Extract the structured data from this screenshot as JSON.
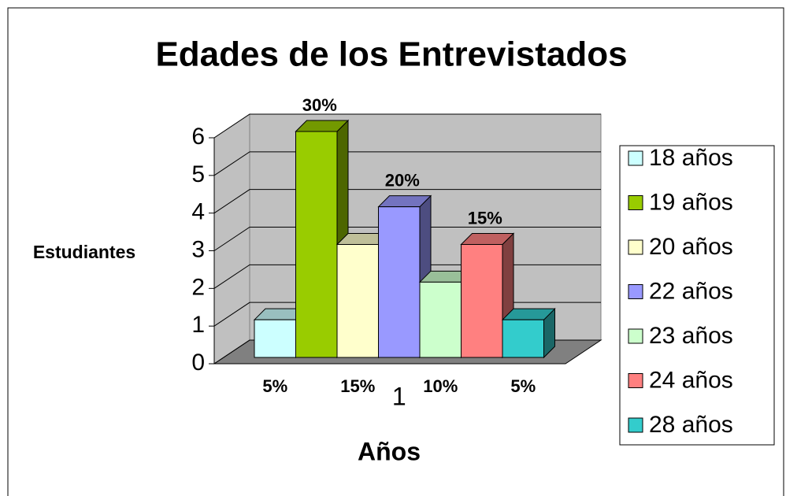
{
  "chart_data": {
    "type": "bar3d",
    "title": "Edades de los Entrevistados",
    "xlabel": "Años",
    "ylabel": "Estudiantes",
    "categories": [
      "1"
    ],
    "series": [
      {
        "name": "18 años",
        "color": "#ccffff",
        "values": [
          1
        ],
        "value_labels": [
          "5%"
        ]
      },
      {
        "name": "19 años",
        "color": "#99cc00",
        "values": [
          6
        ],
        "value_labels": [
          "30%"
        ]
      },
      {
        "name": "20 años",
        "color": "#ffffcc",
        "values": [
          3
        ],
        "value_labels": [
          "15%"
        ]
      },
      {
        "name": "22 años",
        "color": "#9999ff",
        "values": [
          4
        ],
        "value_labels": [
          "20%"
        ]
      },
      {
        "name": "23 años",
        "color": "#ccffcc",
        "values": [
          2
        ],
        "value_labels": [
          "10%"
        ]
      },
      {
        "name": "24 años",
        "color": "#ff8080",
        "values": [
          3
        ],
        "value_labels": [
          "15%"
        ]
      },
      {
        "name": "28 años",
        "color": "#33cccc",
        "values": [
          1
        ],
        "value_labels": [
          "5%"
        ]
      }
    ],
    "ylim": [
      0,
      6
    ],
    "yticks": [
      0,
      1,
      2,
      3,
      4,
      5,
      6
    ],
    "grid": true,
    "legend": "right"
  }
}
